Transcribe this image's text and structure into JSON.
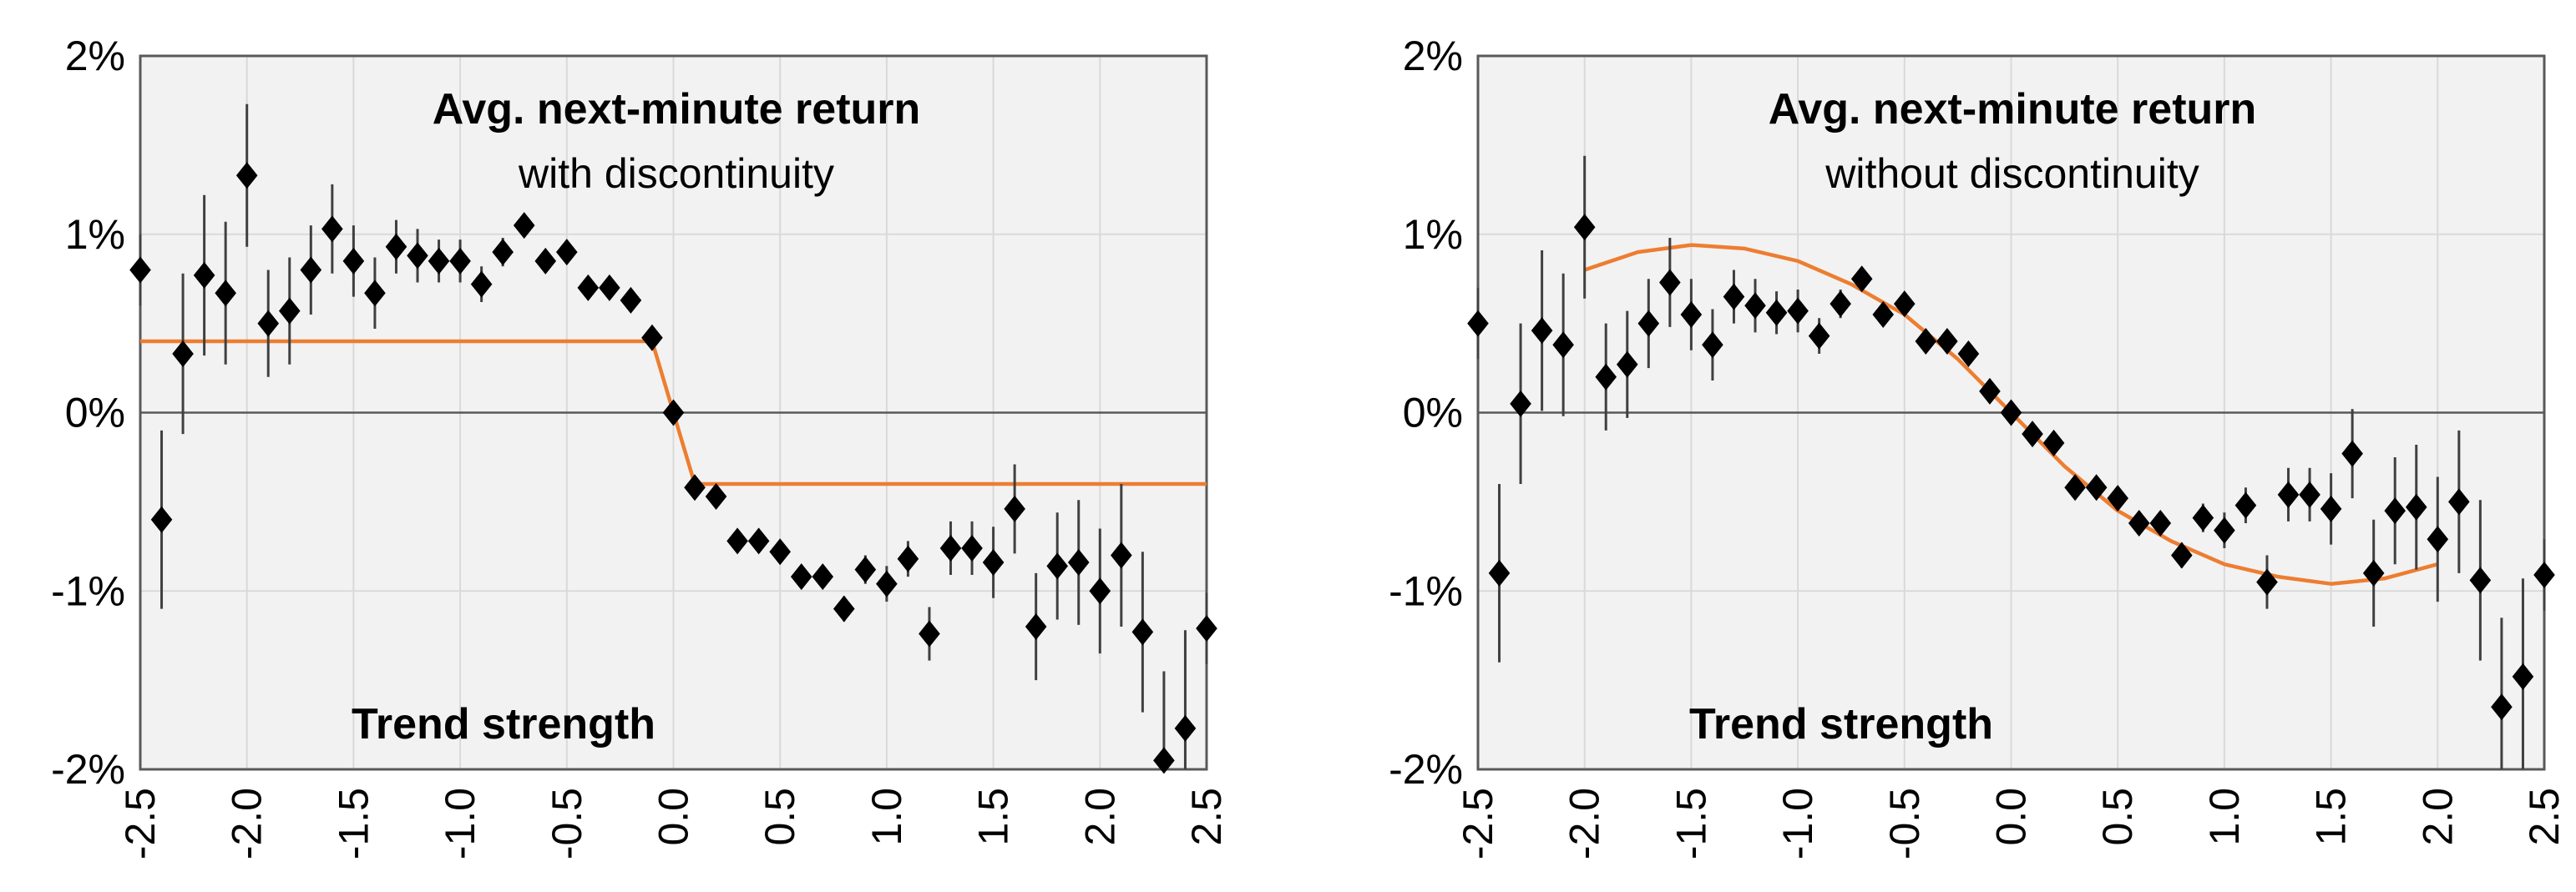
{
  "chart_data": [
    {
      "type": "scatter",
      "title": "Avg. next-minute return",
      "subtitle": "with discontinuity",
      "xlabel": "Trend strength",
      "ylabel": "",
      "xlim": [
        -2.5,
        2.5
      ],
      "ylim": [
        -2,
        2
      ],
      "x_ticks": [
        "-2.5",
        "-2.0",
        "-1.5",
        "-1.0",
        "-0.5",
        "0.0",
        "0.5",
        "1.0",
        "1.5",
        "2.0",
        "2.5"
      ],
      "y_ticks": [
        "2%",
        "1%",
        "0%",
        "-1%",
        "-2%"
      ],
      "grid": true,
      "series": [
        {
          "color": "#000000",
          "x": [
            -2.5,
            -2.4,
            -2.3,
            -2.2,
            -2.1,
            -2.0,
            -1.9,
            -1.8,
            -1.7,
            -1.6,
            -1.5,
            -1.4,
            -1.3,
            -1.2,
            -1.1,
            -1.0,
            -0.9,
            -0.8,
            -0.7,
            -0.6,
            -0.5,
            -0.4,
            -0.3,
            -0.2,
            -0.1,
            0.0,
            0.1,
            0.2,
            0.3,
            0.4,
            0.5,
            0.6,
            0.7,
            0.8,
            0.9,
            1.0,
            1.1,
            1.2,
            1.3,
            1.4,
            1.5,
            1.6,
            1.7,
            1.8,
            1.9,
            2.0,
            2.1,
            2.2,
            2.3,
            2.4,
            2.5
          ],
          "y": [
            0.8,
            -0.6,
            0.33,
            0.77,
            0.67,
            1.33,
            0.5,
            0.57,
            0.8,
            1.03,
            0.85,
            0.67,
            0.93,
            0.88,
            0.85,
            0.85,
            0.72,
            0.9,
            1.05,
            0.85,
            0.9,
            0.7,
            0.7,
            0.63,
            0.42,
            0.0,
            -0.42,
            -0.47,
            -0.72,
            -0.72,
            -0.78,
            -0.92,
            -0.92,
            -1.1,
            -0.88,
            -0.96,
            -0.82,
            -1.24,
            -0.76,
            -0.76,
            -0.84,
            -0.54,
            -1.2,
            -0.86,
            -0.84,
            -1.0,
            -0.8,
            -1.23,
            -1.95,
            -1.77,
            -1.21
          ],
          "err": [
            0.2,
            0.5,
            0.45,
            0.45,
            0.4,
            0.4,
            0.3,
            0.3,
            0.25,
            0.25,
            0.2,
            0.2,
            0.15,
            0.15,
            0.12,
            0.12,
            0.1,
            0.08,
            0.05,
            0.05,
            0.05,
            0.05,
            0.05,
            0.05,
            0.05,
            0.05,
            0.05,
            0.05,
            0.05,
            0.05,
            0.05,
            0.05,
            0.05,
            0.07,
            0.08,
            0.1,
            0.1,
            0.15,
            0.15,
            0.15,
            0.2,
            0.25,
            0.3,
            0.3,
            0.35,
            0.35,
            0.4,
            0.45,
            0.5,
            0.55,
            0.2
          ]
        },
        {
          "color": "#ED7D31",
          "line": true,
          "x": [
            -2.5,
            -0.1,
            0.0,
            0.1,
            2.5
          ],
          "y": [
            0.4,
            0.4,
            0.0,
            -0.4,
            -0.4
          ]
        }
      ]
    },
    {
      "type": "scatter",
      "title": "Avg. next-minute return",
      "subtitle": "without discontinuity",
      "xlabel": "Trend strength",
      "ylabel": "",
      "xlim": [
        -2.5,
        2.5
      ],
      "ylim": [
        -2,
        2
      ],
      "x_ticks": [
        "-2.5",
        "-2.0",
        "-1.5",
        "-1.0",
        "-0.5",
        "0.0",
        "0.5",
        "1.0",
        "1.5",
        "2.0",
        "2.5"
      ],
      "y_ticks": [
        "2%",
        "1%",
        "0%",
        "-1%",
        "-2%"
      ],
      "grid": true,
      "series": [
        {
          "color": "#000000",
          "x": [
            -2.5,
            -2.4,
            -2.3,
            -2.2,
            -2.1,
            -2.0,
            -1.9,
            -1.8,
            -1.7,
            -1.6,
            -1.5,
            -1.4,
            -1.3,
            -1.2,
            -1.1,
            -1.0,
            -0.9,
            -0.8,
            -0.7,
            -0.6,
            -0.5,
            -0.4,
            -0.3,
            -0.2,
            -0.1,
            0.0,
            0.1,
            0.2,
            0.3,
            0.4,
            0.5,
            0.6,
            0.7,
            0.8,
            0.9,
            1.0,
            1.1,
            1.2,
            1.3,
            1.4,
            1.5,
            1.6,
            1.7,
            1.8,
            1.9,
            2.0,
            2.1,
            2.2,
            2.3,
            2.4,
            2.5
          ],
          "y": [
            0.5,
            -0.9,
            0.05,
            0.46,
            0.38,
            1.04,
            0.2,
            0.27,
            0.5,
            0.73,
            0.55,
            0.38,
            0.65,
            0.6,
            0.56,
            0.57,
            0.43,
            0.61,
            0.75,
            0.55,
            0.61,
            0.4,
            0.4,
            0.33,
            0.12,
            0.0,
            -0.12,
            -0.17,
            -0.42,
            -0.42,
            -0.48,
            -0.62,
            -0.62,
            -0.8,
            -0.59,
            -0.66,
            -0.52,
            -0.95,
            -0.46,
            -0.46,
            -0.54,
            -0.23,
            -0.9,
            -0.55,
            -0.53,
            -0.71,
            -0.5,
            -0.94,
            -1.65,
            -1.48,
            -0.91
          ],
          "err": [
            0.2,
            0.5,
            0.45,
            0.45,
            0.4,
            0.4,
            0.3,
            0.3,
            0.25,
            0.25,
            0.2,
            0.2,
            0.15,
            0.15,
            0.12,
            0.12,
            0.1,
            0.08,
            0.05,
            0.05,
            0.05,
            0.05,
            0.05,
            0.05,
            0.05,
            0.05,
            0.05,
            0.05,
            0.05,
            0.05,
            0.05,
            0.05,
            0.05,
            0.07,
            0.08,
            0.1,
            0.1,
            0.15,
            0.15,
            0.15,
            0.2,
            0.25,
            0.3,
            0.3,
            0.35,
            0.35,
            0.4,
            0.45,
            0.5,
            0.55,
            0.2
          ]
        },
        {
          "color": "#ED7D31",
          "line": true,
          "x": [
            -2.0,
            -1.75,
            -1.5,
            -1.25,
            -1.0,
            -0.75,
            -0.5,
            -0.25,
            0.0,
            0.25,
            0.5,
            0.75,
            1.0,
            1.25,
            1.5,
            1.75,
            2.0
          ],
          "y": [
            0.8,
            0.9,
            0.94,
            0.92,
            0.85,
            0.72,
            0.55,
            0.3,
            0.0,
            -0.3,
            -0.55,
            -0.72,
            -0.85,
            -0.92,
            -0.96,
            -0.93,
            -0.85
          ]
        }
      ]
    }
  ]
}
